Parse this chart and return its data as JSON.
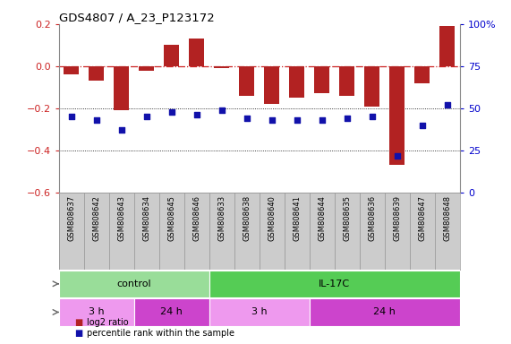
{
  "title": "GDS4807 / A_23_P123172",
  "samples": [
    "GSM808637",
    "GSM808642",
    "GSM808643",
    "GSM808634",
    "GSM808645",
    "GSM808646",
    "GSM808633",
    "GSM808638",
    "GSM808640",
    "GSM808641",
    "GSM808644",
    "GSM808635",
    "GSM808636",
    "GSM808639",
    "GSM808647",
    "GSM808648"
  ],
  "log2_ratio": [
    -0.04,
    -0.07,
    -0.21,
    -0.02,
    0.1,
    0.13,
    -0.01,
    -0.14,
    -0.18,
    -0.15,
    -0.13,
    -0.14,
    -0.19,
    -0.47,
    -0.08,
    0.19
  ],
  "percentile": [
    45,
    43,
    37,
    45,
    48,
    46,
    49,
    44,
    43,
    43,
    43,
    44,
    45,
    22,
    40,
    52
  ],
  "bar_color": "#b22222",
  "dot_color": "#1111aa",
  "dashed_line_color": "#cc2222",
  "ylim_left": [
    -0.6,
    0.2
  ],
  "ylim_right": [
    0,
    100
  ],
  "yticks_left": [
    -0.6,
    -0.4,
    -0.2,
    0.0,
    0.2
  ],
  "yticks_right": [
    0,
    25,
    50,
    75,
    100
  ],
  "time_groups": [
    {
      "label": "3 h",
      "start": 0,
      "end": 3,
      "color": "#ee99ee"
    },
    {
      "label": "24 h",
      "start": 3,
      "end": 6,
      "color": "#cc44cc"
    },
    {
      "label": "3 h",
      "start": 6,
      "end": 10,
      "color": "#ee99ee"
    },
    {
      "label": "24 h",
      "start": 10,
      "end": 16,
      "color": "#cc44cc"
    }
  ],
  "agent_groups": [
    {
      "label": "control",
      "start": 0,
      "end": 6,
      "color": "#99dd99"
    },
    {
      "label": "IL-17C",
      "start": 6,
      "end": 16,
      "color": "#55cc55"
    }
  ],
  "legend_items": [
    {
      "label": "log2 ratio",
      "color": "#b22222"
    },
    {
      "label": "percentile rank within the sample",
      "color": "#1111aa"
    }
  ],
  "bg_color": "#ffffff",
  "tick_color_left": "#cc2222",
  "tick_color_right": "#0000cc",
  "label_bg": "#cccccc",
  "label_border": "#999999"
}
